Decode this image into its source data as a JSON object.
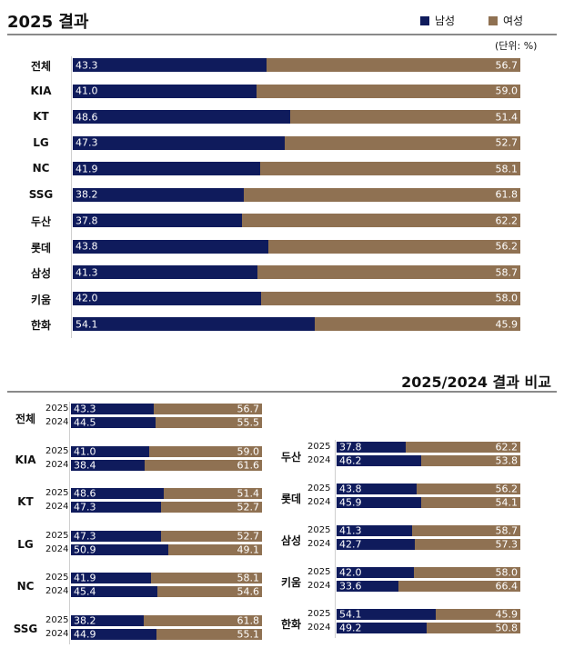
{
  "colors": {
    "male": "#0f1b5c",
    "female": "#8f7152"
  },
  "legend": {
    "male_label": "남성",
    "female_label": "여성"
  },
  "unit_label": "(단위: %)",
  "chart_data": [
    {
      "type": "bar",
      "title": "2025 결과",
      "stacked": true,
      "orientation": "horizontal",
      "categories": [
        "전체",
        "KIA",
        "KT",
        "LG",
        "NC",
        "SSG",
        "두산",
        "롯데",
        "삼성",
        "키움",
        "한화"
      ],
      "series": [
        {
          "name": "남성",
          "values": [
            43.3,
            41.0,
            48.6,
            47.3,
            41.9,
            38.2,
            37.8,
            43.8,
            41.3,
            42.0,
            54.1
          ]
        },
        {
          "name": "여성",
          "values": [
            56.7,
            59.0,
            51.4,
            52.7,
            58.1,
            61.8,
            62.2,
            56.2,
            58.7,
            58.0,
            45.9
          ]
        }
      ],
      "xlim": [
        0,
        100
      ]
    },
    {
      "type": "bar",
      "title": "2025/2024 결과 비교",
      "stacked": true,
      "orientation": "horizontal",
      "years": [
        "2025",
        "2024"
      ],
      "groups": [
        {
          "category": "전체",
          "male": [
            43.3,
            44.5
          ],
          "female": [
            56.7,
            55.5
          ]
        },
        {
          "category": "KIA",
          "male": [
            41.0,
            38.4
          ],
          "female": [
            59.0,
            61.6
          ]
        },
        {
          "category": "KT",
          "male": [
            48.6,
            47.3
          ],
          "female": [
            51.4,
            52.7
          ]
        },
        {
          "category": "LG",
          "male": [
            47.3,
            50.9
          ],
          "female": [
            52.7,
            49.1
          ]
        },
        {
          "category": "NC",
          "male": [
            41.9,
            45.4
          ],
          "female": [
            58.1,
            54.6
          ]
        },
        {
          "category": "SSG",
          "male": [
            38.2,
            44.9
          ],
          "female": [
            61.8,
            55.1
          ]
        },
        {
          "category": "두산",
          "male": [
            37.8,
            46.2
          ],
          "female": [
            62.2,
            53.8
          ]
        },
        {
          "category": "롯데",
          "male": [
            43.8,
            45.9
          ],
          "female": [
            56.2,
            54.1
          ]
        },
        {
          "category": "삼성",
          "male": [
            41.3,
            42.7
          ],
          "female": [
            58.7,
            57.3
          ]
        },
        {
          "category": "키움",
          "male": [
            42.0,
            33.6
          ],
          "female": [
            58.0,
            66.4
          ]
        },
        {
          "category": "한화",
          "male": [
            54.1,
            49.2
          ],
          "female": [
            45.9,
            50.8
          ]
        }
      ],
      "xlim": [
        0,
        100
      ]
    }
  ]
}
